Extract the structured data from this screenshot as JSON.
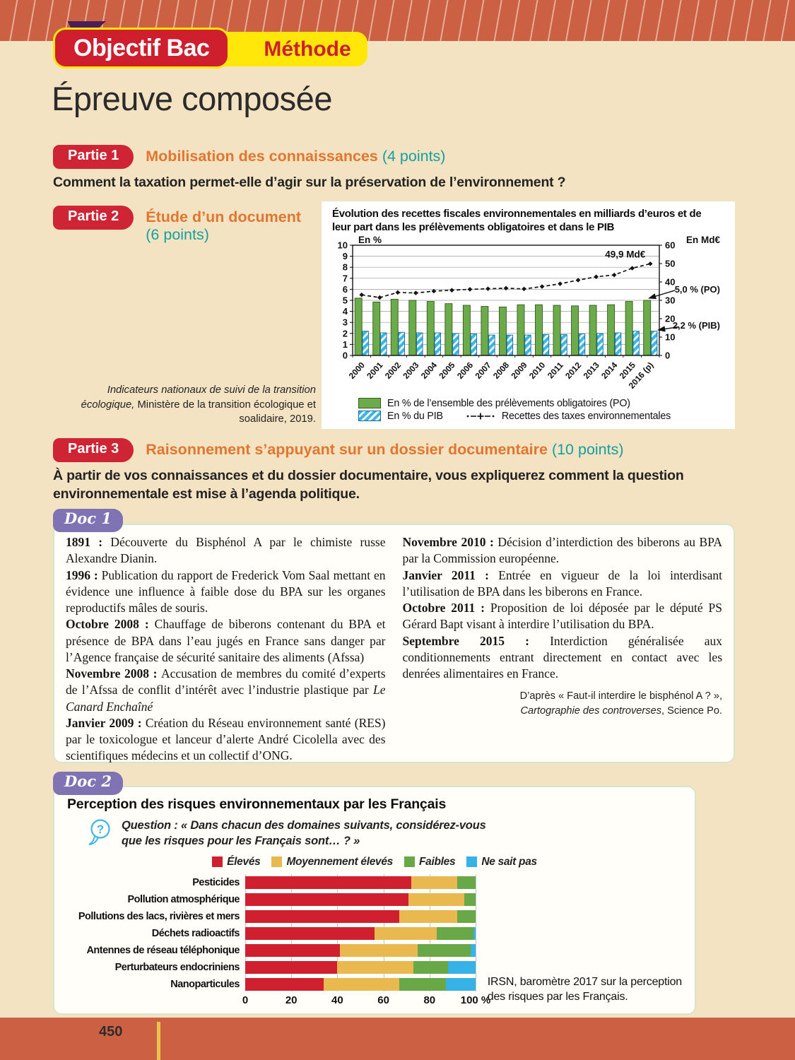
{
  "colors": {
    "band": "#cb6142",
    "page_bg": "#f4e3c2",
    "badge_red": "#cf1e2e",
    "badge_yellow": "#ffe70a",
    "partie_red": "#cf2433",
    "section_orange": "#e0762f",
    "points_teal": "#169f9f",
    "doc_purple": "#7f73b4",
    "box_border_green": "#d6e6cb",
    "bar_green": "#6cab4b",
    "bar_blue": "#38b6e9",
    "c2_red": "#d02030",
    "c2_yellow": "#e9b84e",
    "c2_green": "#69a847",
    "c2_blue": "#36b2e7"
  },
  "page": {
    "number": "450"
  },
  "header": {
    "badge_main": "Objectif Bac",
    "badge_sub": "Méthode",
    "title": "Épreuve composée"
  },
  "partie1": {
    "badge": "Partie 1",
    "title": "Mobilisation des connaissances",
    "points": "(4 points)",
    "question": "Comment la taxation permet-elle d’agir sur la préservation de l’environnement ?"
  },
  "partie2": {
    "badge": "Partie 2",
    "title": "Étude d’un document",
    "points": "(6 points)",
    "chart_title_line1": "Évolution des recettes fiscales environnementales en milliards d’euros et de",
    "chart_title_line2": "leur part dans les prélèvements obligatoires et dans le PIB",
    "source_italic": "Indicateurs nationaux de suivi de la transition écologique,",
    "source_rest": " Ministère de la transition écologique et soalidaire, 2019."
  },
  "partie3": {
    "badge": "Partie 3",
    "title": "Raisonnement s’appuyant sur un dossier documentaire",
    "points": "(10 points)",
    "consigne_line1": "À partir de vos connaissances et du dossier documentaire, vous expliquerez comment la question",
    "consigne_line2": "environnementale est mise à l’agenda politique."
  },
  "doc1": {
    "badge": "Doc 1",
    "columns": [
      [
        {
          "label": "1891 :",
          "text": "Découverte du Bisphénol A par le chimiste russe Alexandre Dianin."
        },
        {
          "label": "1996 :",
          "text": "Publication du rapport de Frederick Vom Saal mettant en évidence une influence à faible dose du BPA sur les organes reproductifs mâles de souris."
        },
        {
          "label": "Octobre 2008 :",
          "text": "Chauffage de biberons contenant du BPA et présence de BPA dans l’eau jugés en France sans danger par l’Agence française de sécurité sanitaire des aliments (Afssa)"
        },
        {
          "label": "Novembre 2008 :",
          "text": "Accusation de membres du comité d’experts de l’Afssa de conflit d’intérêt avec l’industrie plastique par ",
          "italic": "Le Canard Enchaîné"
        },
        {
          "label": "Janvier 2009 :",
          "text": "Création du Réseau environnement santé (RES) par le toxicologue et lanceur d’alerte André Cicolella avec des scientifiques médecins et un collectif d’ONG."
        }
      ],
      [
        {
          "label": "Novembre 2010 :",
          "text": "Décision d’interdiction des biberons au BPA par la Commission européenne."
        },
        {
          "label": "Janvier 2011 :",
          "text": "Entrée en vigueur de la loi interdisant l’utilisation de BPA dans les biberons en France."
        },
        {
          "label": "Octobre 2011 :",
          "text": "Proposition de loi déposée par le député PS Gérard Bapt visant à interdire l’utilisation du BPA."
        },
        {
          "label": "Septembre 2015 :",
          "text": "Interdiction généralisée aux conditionnements entrant directement en contact avec les denrées alimentaires en France."
        }
      ]
    ],
    "source_line1": "D’après « Faut-il interdire le bisphénol A ? »,",
    "source_italic": "Cartographie des controverses",
    "source_rest": ", Science Po."
  },
  "doc2": {
    "badge": "Doc 2",
    "title": "Perception des risques environnementaux par les Français",
    "question_line1": "Question : « Dans chacun des domaines suivants, considérez-vous",
    "question_line2": "que les risques pour les Français sont… ? »",
    "source_line1": "IRSN, baromètre 2017 sur la perception",
    "source_line2": "des risques par les Français."
  },
  "chart_data": [
    {
      "id": "recettes-fiscales-environnementales",
      "type": "bar+line",
      "title": "Évolution des recettes fiscales environnementales en milliards d’euros et de leur part dans les prélèvements obligatoires et dans le PIB",
      "categories": [
        "2000",
        "2001",
        "2002",
        "2003",
        "2004",
        "2005",
        "2006",
        "2007",
        "2008",
        "2009",
        "2010",
        "2011",
        "2012",
        "2013",
        "2014",
        "2015",
        "2016 (p)"
      ],
      "series": [
        {
          "name": "En % de l’ensemble des prélèvements obligatoires (PO)",
          "type": "bar",
          "axis": "left",
          "color": "#6cab4b",
          "values": [
            5.2,
            4.85,
            5.1,
            5.0,
            4.9,
            4.7,
            4.55,
            4.45,
            4.4,
            4.6,
            4.6,
            4.55,
            4.5,
            4.55,
            4.6,
            4.9,
            5.0
          ]
        },
        {
          "name": "En % du PIB",
          "type": "bar",
          "axis": "left",
          "style": "hatched",
          "color": "#38b6e9",
          "values": [
            2.2,
            2.05,
            2.1,
            2.05,
            2.05,
            2.0,
            1.95,
            1.85,
            1.85,
            1.85,
            1.9,
            1.9,
            1.95,
            2.0,
            2.05,
            2.2,
            2.2
          ]
        },
        {
          "name": "Recettes des taxes environnementales",
          "type": "line",
          "axis": "right",
          "style": "dashed",
          "color": "#141414",
          "values": [
            33,
            31.5,
            34.3,
            34,
            35,
            35.5,
            36,
            36.3,
            36.6,
            36.2,
            37.5,
            39,
            41,
            42.8,
            43.8,
            47.5,
            49.9
          ]
        }
      ],
      "left_axis": {
        "label": "En %",
        "min": 0,
        "max": 10,
        "step": 1
      },
      "right_axis": {
        "label": "En Md€",
        "min": 0,
        "max": 60,
        "step": 10
      },
      "annotations": {
        "line_end": "49,9 Md€",
        "po": "5,0 % (PO)",
        "pib": "2,2 % (PIB)"
      }
    },
    {
      "id": "perception-risques",
      "type": "stacked-bar-horizontal",
      "title": "Perception des risques environnementaux par les Français",
      "categories": [
        "Pesticides",
        "Pollution atmosphérique",
        "Pollutions des lacs, rivières et mers",
        "Déchets radioactifs",
        "Antennes de réseau téléphonique",
        "Perturbateurs endocriniens",
        "Nanoparticules"
      ],
      "series": [
        {
          "name": "Élevés",
          "color": "#d02030",
          "values": [
            72,
            71,
            67,
            56,
            41,
            40,
            34
          ]
        },
        {
          "name": "Moyennement élevés",
          "color": "#e9b84e",
          "values": [
            20,
            24,
            25,
            27,
            34,
            33,
            33
          ]
        },
        {
          "name": "Faibles",
          "color": "#69a847",
          "values": [
            8,
            5,
            8,
            16,
            23,
            15,
            20
          ]
        },
        {
          "name": "Ne sait pas",
          "color": "#36b2e7",
          "values": [
            0,
            0,
            0,
            1,
            2,
            12,
            13
          ]
        }
      ],
      "xlabel_ticks": [
        "0",
        "20",
        "40",
        "60",
        "80",
        "100 %"
      ],
      "xlim": [
        0,
        100
      ],
      "grid": true,
      "legend_position": "top"
    }
  ]
}
